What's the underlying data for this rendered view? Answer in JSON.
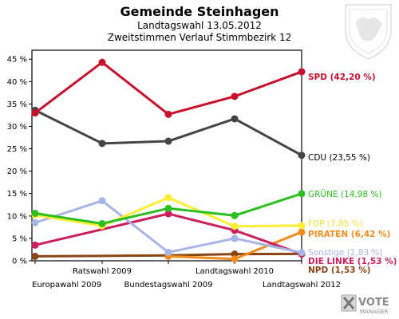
{
  "header": {
    "title": "Gemeinde Steinhagen",
    "subtitle_1": "Landtagswahl 13.05.2012",
    "subtitle_2": "Zweitstimmen Verlauf Stimmbezirk 12"
  },
  "branding": {
    "logo_text_1": "VOTE",
    "logo_text_2": "MANAGER",
    "logo_icon": "ballot-x-icon",
    "crest_icon": "coat-of-arms-icon"
  },
  "chart_data": {
    "type": "line",
    "title": "Gemeinde Steinhagen",
    "subtitle": [
      "Landtagswahl 13.05.2012",
      "Zweitstimmen Verlauf Stimmbezirk 12"
    ],
    "categories": [
      "Europawahl 2009",
      "Ratswahl 2009",
      "Bundestagswahl 2009",
      "Landtagswahl 2010",
      "Landtagswahl 2012"
    ],
    "ylim": [
      0,
      47
    ],
    "yticks": [
      0,
      5,
      10,
      15,
      20,
      25,
      30,
      35,
      40,
      45
    ],
    "ytick_labels": [
      "0 %",
      "5 %",
      "10 %",
      "15 %",
      "20 %",
      "25 %",
      "30 %",
      "35 %",
      "40 %",
      "45 %"
    ],
    "grid": false,
    "legend": "right end labels",
    "series": [
      {
        "name": "SPD",
        "label": "SPD (42,20 %)",
        "color": "#c8102e",
        "values": [
          33.0,
          44.3,
          32.7,
          36.7,
          42.2
        ]
      },
      {
        "name": "CDU",
        "label": "CDU (23,55 %)",
        "color": "#444444",
        "values": [
          33.6,
          26.2,
          26.7,
          31.7,
          23.55
        ]
      },
      {
        "name": "GRÜNE",
        "label": "GRÜNE (14,98 %)",
        "color": "#2bbf20",
        "values": [
          10.6,
          8.3,
          11.7,
          10.1,
          14.98
        ]
      },
      {
        "name": "FDP",
        "label": "FDP (7,85 %)",
        "color": "#ffee33",
        "values": [
          10.2,
          7.8,
          14.1,
          7.7,
          7.85
        ]
      },
      {
        "name": "PIRATEN",
        "label": "PIRATEN (6,42 %)",
        "color": "#f28c1e",
        "values": [
          null,
          null,
          1.0,
          0.4,
          6.42
        ]
      },
      {
        "name": "Sonstige",
        "label": "Sonstige (1,83 %)",
        "color": "#a8b4e6",
        "values": [
          8.5,
          13.4,
          1.9,
          5.0,
          1.83
        ]
      },
      {
        "name": "DIE LINKE",
        "label": "DIE LINKE (1,53 %)",
        "color": "#cc1f5f",
        "values": [
          3.5,
          null,
          10.5,
          6.8,
          1.53
        ]
      },
      {
        "name": "NPD",
        "label": "NPD (1,53 %)",
        "color": "#8b4513",
        "values": [
          1.0,
          null,
          1.2,
          1.5,
          1.53
        ]
      }
    ]
  }
}
